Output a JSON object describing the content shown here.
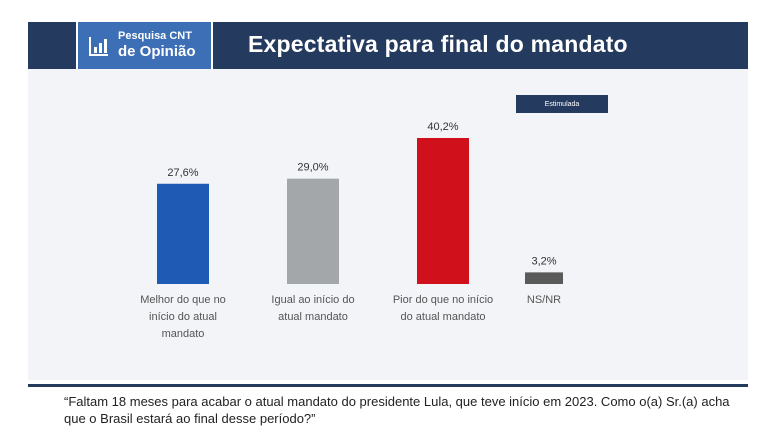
{
  "header": {
    "logo_line1": "Pesquisa CNT",
    "logo_line2": "de Opinião",
    "title": "Expectativa para final do mandato"
  },
  "badge": "Estimulada",
  "question": "“Faltam 18 meses para acabar o atual mandato do presidente Lula, que teve início em 2023. Como o(a) Sr.(a) acha que o Brasil estará ao final desse período?”",
  "colors": {
    "header_bg": "#243a5e",
    "logo_bg": "#3c6fb5",
    "bar_melhor": "#1f5bb5",
    "bar_igual": "#a3a7aa",
    "bar_pior": "#d0101a",
    "bar_nsnr": "#5a5a5a"
  },
  "chart_data": {
    "type": "bar",
    "categories": [
      [
        "Melhor do que no",
        "início do atual",
        "mandato"
      ],
      [
        "Igual ao início do",
        "atual mandato"
      ],
      [
        "Pior do que no início",
        "do atual mandato"
      ],
      [
        "NS/NR"
      ]
    ],
    "values": [
      27.6,
      29.0,
      40.2,
      3.2
    ],
    "value_labels": [
      "27,6%",
      "29,0%",
      "40,2%",
      "3,2%"
    ],
    "colors": [
      "#1f5bb5",
      "#a3a7aa",
      "#d0101a",
      "#5a5a5a"
    ],
    "title": "",
    "xlabel": "",
    "ylabel": "",
    "ylim": [
      0,
      40.2
    ],
    "grid": false,
    "legend": "none"
  }
}
